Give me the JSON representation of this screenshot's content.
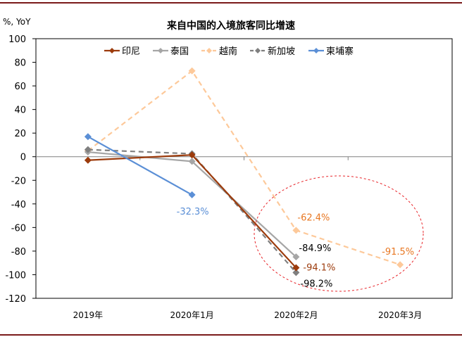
{
  "chart_data": {
    "type": "line",
    "title": "来自中国的入境旅客同比增速",
    "ylabel": "%, YoY",
    "ylim": [
      -120,
      100
    ],
    "yticks": [
      100,
      80,
      60,
      40,
      20,
      0,
      -20,
      -40,
      -60,
      -80,
      -100,
      -120
    ],
    "categories": [
      "2019年",
      "2020年1月",
      "2020年2月",
      "2020年3月"
    ],
    "legend_position": "top",
    "grid": false,
    "series": [
      {
        "name": "印尼",
        "color": "#9c3b0c",
        "dash": false,
        "values": [
          -3,
          1.5,
          -94.1,
          null
        ]
      },
      {
        "name": "泰国",
        "color": "#a6a6a6",
        "dash": false,
        "values": [
          4,
          -4,
          -84.9,
          null
        ]
      },
      {
        "name": "越南",
        "color": "#fdc99a",
        "dash": true,
        "values": [
          5,
          72.7,
          -62.4,
          -91.5
        ]
      },
      {
        "name": "新加坡",
        "color": "#7f7f7f",
        "dash": true,
        "values": [
          6,
          2.5,
          -98.2,
          null
        ]
      },
      {
        "name": "柬埔寨",
        "color": "#5b8fd6",
        "dash": false,
        "values": [
          17,
          -32.3,
          null,
          null
        ]
      }
    ],
    "annotations": [
      {
        "text": "-32.3%",
        "color": "#5b8fd6",
        "series": "柬埔寨",
        "category": "2020年1月"
      },
      {
        "text": "-62.4%",
        "color": "#e87722",
        "series": "越南",
        "category": "2020年2月"
      },
      {
        "text": "-84.9%",
        "color": "#000000",
        "series": "泰国",
        "category": "2020年2月"
      },
      {
        "text": "-94.1%",
        "color": "#9c3b0c",
        "series": "印尼",
        "category": "2020年2月"
      },
      {
        "text": "-98.2%",
        "color": "#000000",
        "series": "新加坡",
        "category": "2020年2月"
      },
      {
        "text": "-91.5%",
        "color": "#e87722",
        "series": "越南",
        "category": "2020年3月"
      }
    ],
    "highlight_color": "#e8262b"
  }
}
